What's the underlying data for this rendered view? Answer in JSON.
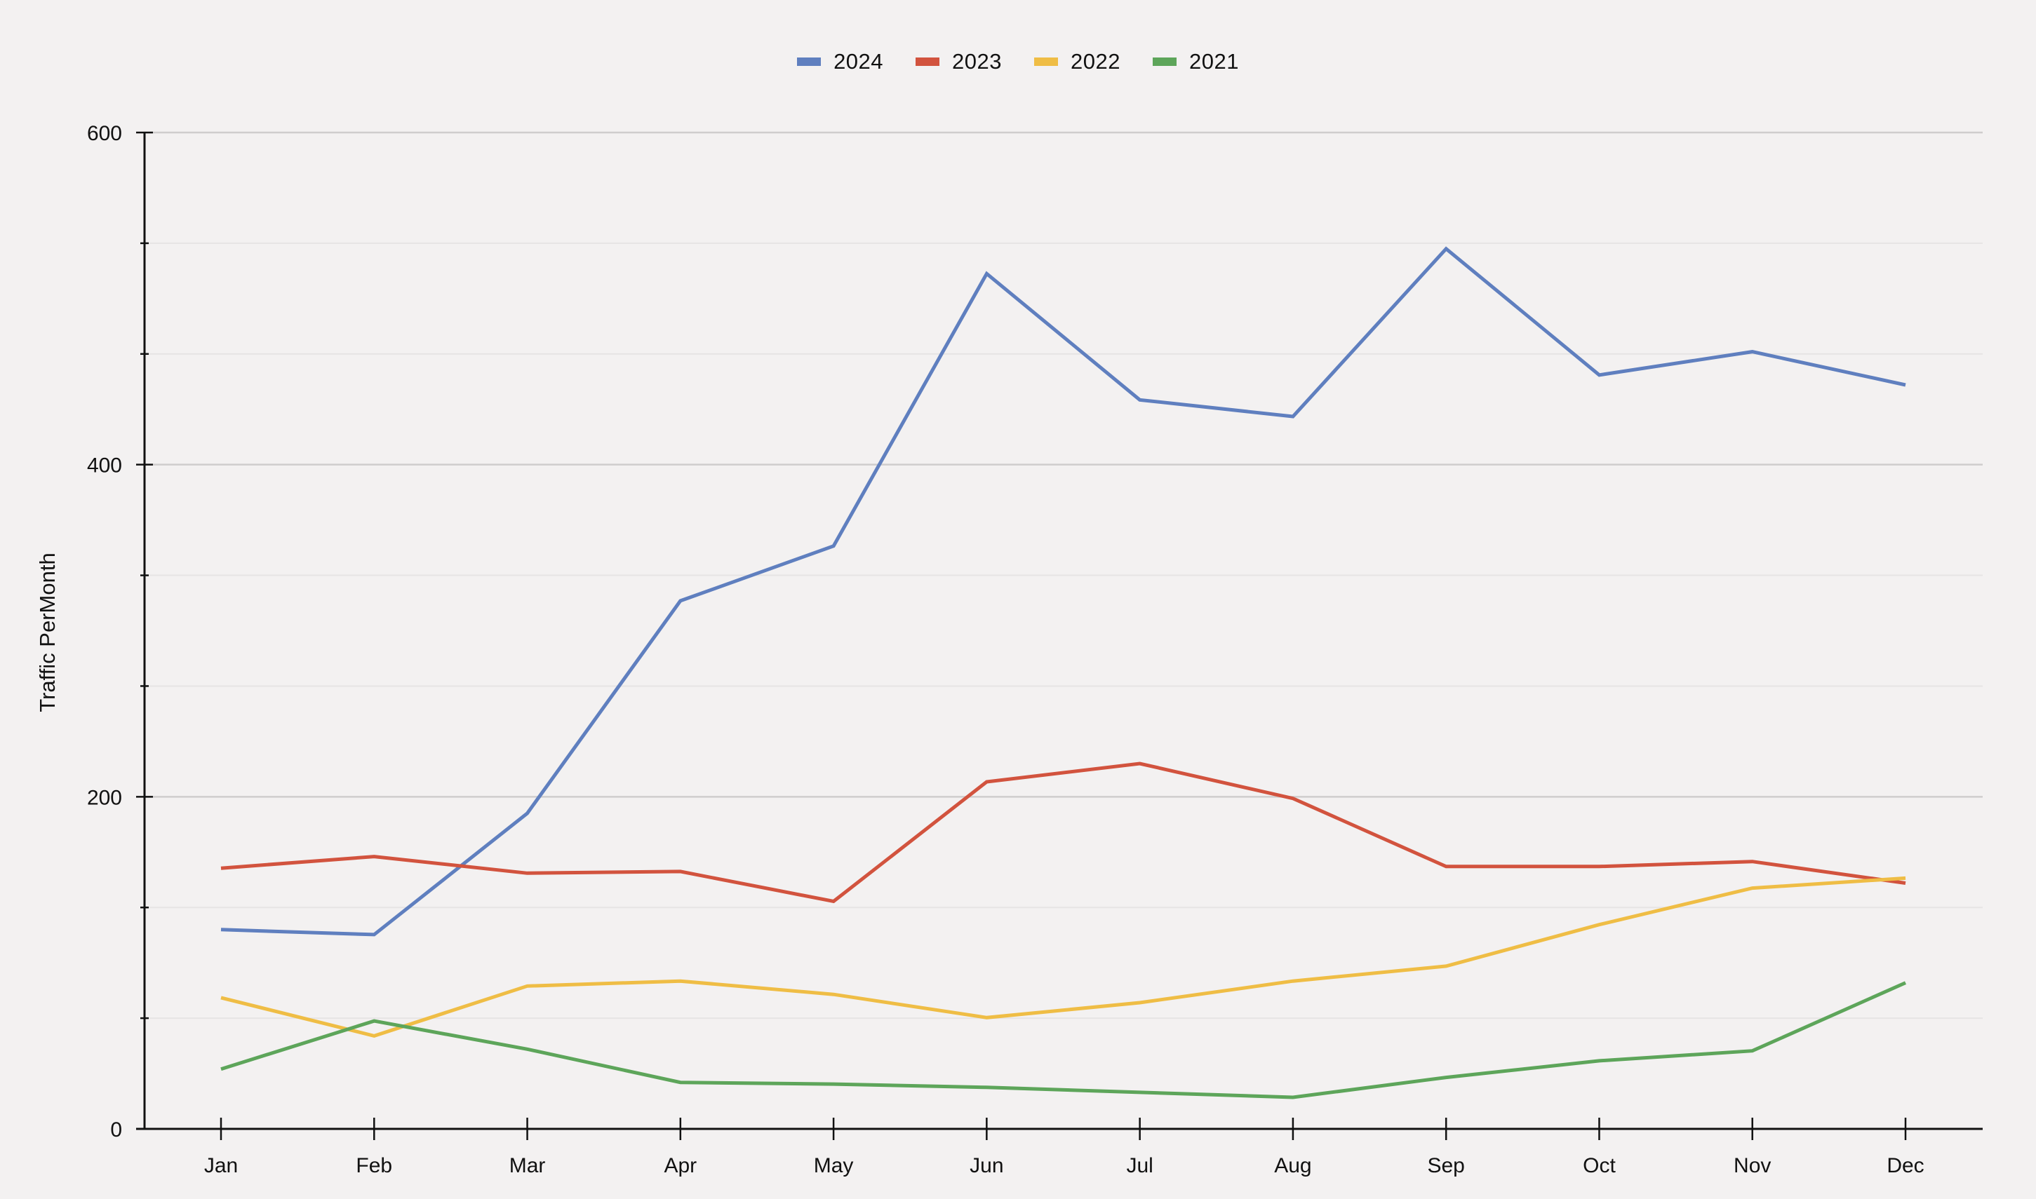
{
  "chart_data": {
    "type": "line",
    "title": "",
    "xlabel": "",
    "ylabel": "Traffic PerMonth",
    "ylim": [
      0,
      600
    ],
    "yticks": [
      0,
      200,
      400,
      600
    ],
    "yminor_step": 66.67,
    "grid": true,
    "legend_position": "top-center",
    "categories": [
      "Jan",
      "Feb",
      "Mar",
      "Apr",
      "May",
      "Jun",
      "Jul",
      "Aug",
      "Sep",
      "Oct",
      "Nov",
      "Dec"
    ],
    "series": [
      {
        "name": "2024",
        "color": "#5f7fbf",
        "values": [
          120,
          117,
          190,
          318,
          351,
          515,
          439,
          429,
          530,
          454,
          468,
          448
        ]
      },
      {
        "name": "2023",
        "color": "#d2533e",
        "values": [
          157,
          164,
          154,
          155,
          137,
          209,
          220,
          199,
          158,
          158,
          161,
          148
        ]
      },
      {
        "name": "2022",
        "color": "#efbd45",
        "values": [
          79,
          56,
          86,
          89,
          81,
          67,
          76,
          89,
          98,
          123,
          145,
          151
        ]
      },
      {
        "name": "2021",
        "color": "#5da55a",
        "values": [
          36,
          65,
          48,
          28,
          27,
          25,
          22,
          19,
          31,
          41,
          47,
          88
        ]
      }
    ]
  },
  "legend": {
    "items": [
      {
        "label": "2024",
        "color": "#5f7fbf"
      },
      {
        "label": "2023",
        "color": "#d2533e"
      },
      {
        "label": "2022",
        "color": "#efbd45"
      },
      {
        "label": "2021",
        "color": "#5da55a"
      }
    ]
  },
  "axes": {
    "y_title": "Traffic PerMonth",
    "y_tick_labels": [
      "0",
      "200",
      "400",
      "600"
    ],
    "x_tick_labels": [
      "Jan",
      "Feb",
      "Mar",
      "Apr",
      "May",
      "Jun",
      "Jul",
      "Aug",
      "Sep",
      "Oct",
      "Nov",
      "Dec"
    ]
  },
  "colors": {
    "background": "#f3f1f1",
    "major_grid": "#cfcdcd",
    "minor_grid": "#e6e4e4",
    "axis": "#111111"
  }
}
